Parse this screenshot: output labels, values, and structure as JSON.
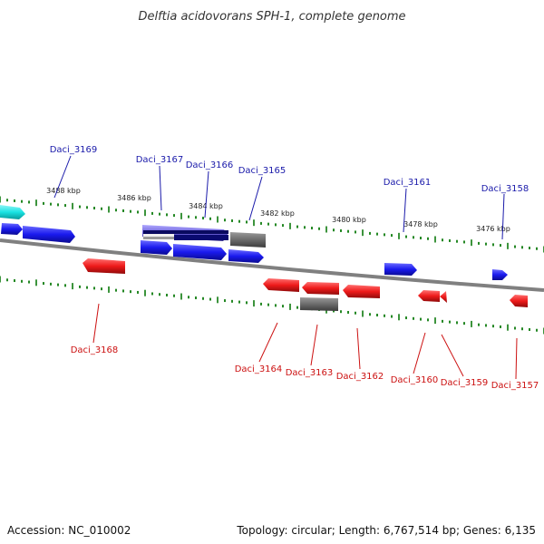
{
  "title": "Delftia acidovorans SPH-1, complete genome",
  "footer": {
    "accession": "Accession: NC_010002",
    "summary": "Topology: circular; Length: 6,767,514 bp; Genes: 6,135"
  },
  "colors": {
    "forward": "#1a1aee",
    "reverse": "#ee1a1a",
    "forward_label": "#1a1aaa",
    "reverse_label": "#cc1111",
    "pseudo": "#6b6b6b",
    "cyan": "#19e3e3",
    "purple": "#6a60d8",
    "tick": "#0c7a0c",
    "backbone": "#808080"
  },
  "kbp_labels": [
    "3488 kbp",
    "3486 kbp",
    "3484 kbp",
    "3482 kbp",
    "3480 kbp",
    "3478 kbp",
    "3476 kbp"
  ],
  "forward_genes": [
    "Daci_3169",
    "Daci_3167",
    "Daci_3166",
    "Daci_3165",
    "Daci_3161",
    "Daci_3158"
  ],
  "reverse_genes": [
    "Daci_3168",
    "Daci_3164",
    "Daci_3163",
    "Daci_3162",
    "Daci_3160",
    "Daci_3159",
    "Daci_3157"
  ]
}
